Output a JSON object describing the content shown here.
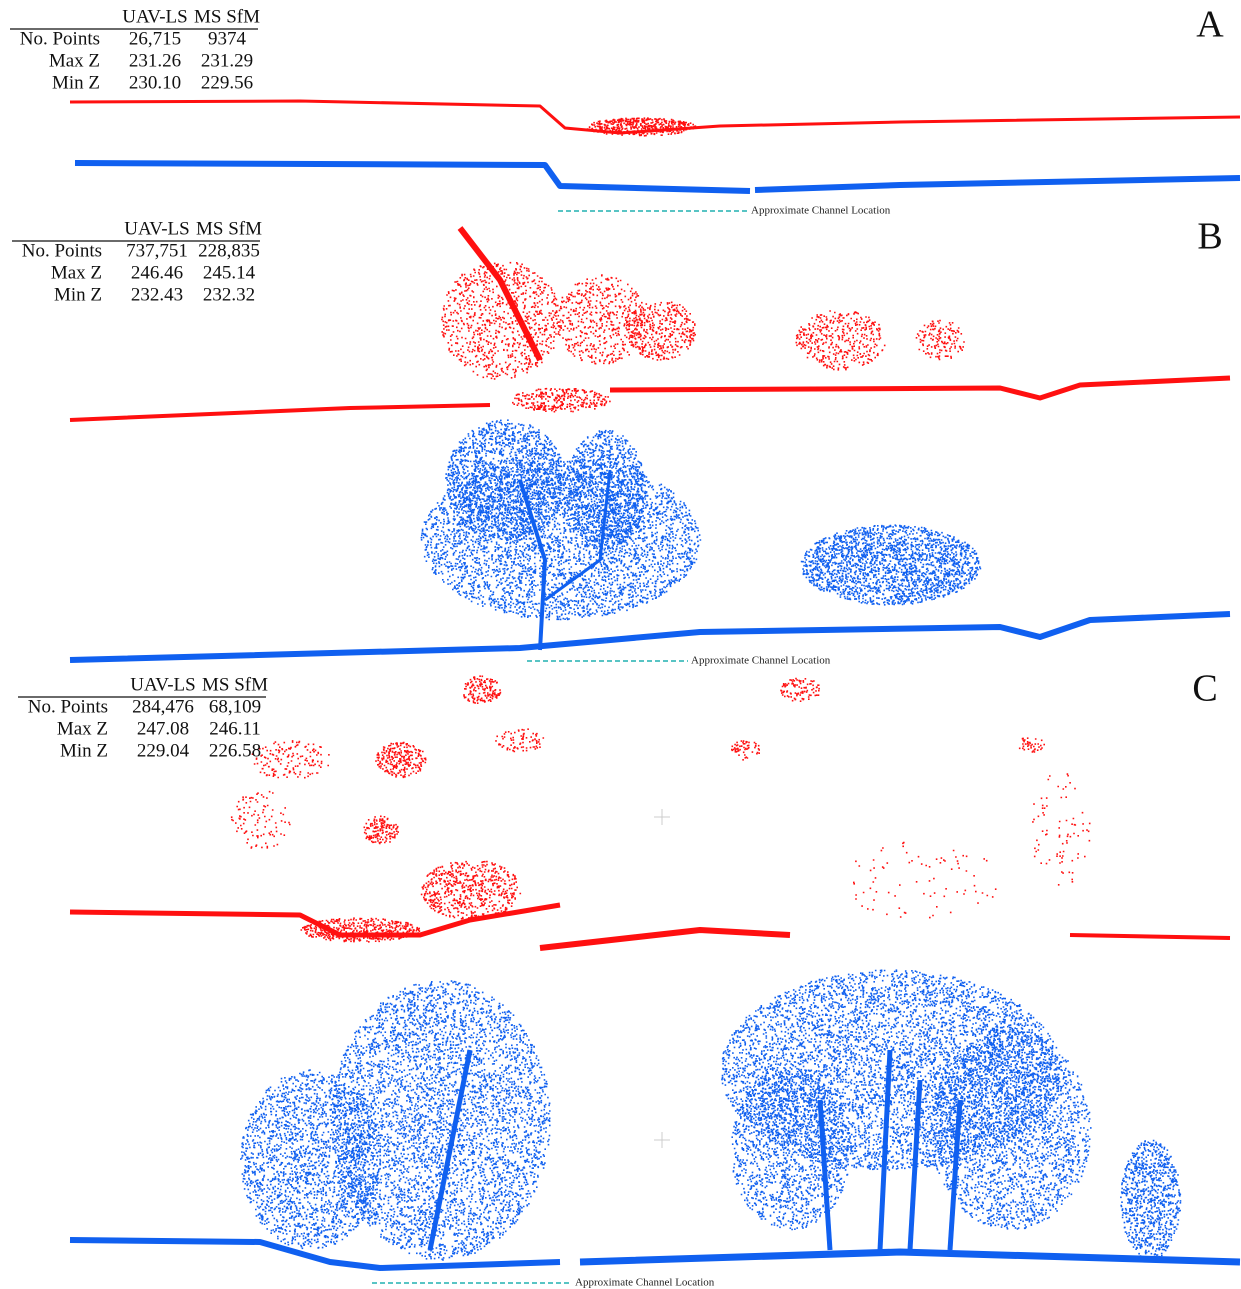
{
  "panels": [
    {
      "label": "A",
      "table": {
        "header": [
          "UAV-LS",
          "MS SfM"
        ],
        "rows": [
          [
            "No. Points",
            "26,715",
            "9374"
          ],
          [
            "Max Z",
            "231.26",
            "231.29"
          ],
          [
            "Min Z",
            "230.10",
            "229.56"
          ]
        ]
      },
      "annotation": "Approximate Channel Location"
    },
    {
      "label": "B",
      "table": {
        "header": [
          "UAV-LS",
          "MS SfM"
        ],
        "rows": [
          [
            "No. Points",
            "737,751",
            "228,835"
          ],
          [
            "Max Z",
            "246.46",
            "245.14"
          ],
          [
            "Min Z",
            "232.43",
            "232.32"
          ]
        ]
      },
      "annotation": "Approximate Channel Location"
    },
    {
      "label": "C",
      "table": {
        "header": [
          "UAV-LS",
          "MS SfM"
        ],
        "rows": [
          [
            "No. Points",
            "284,476",
            "68,109"
          ],
          [
            "Max Z",
            "247.08",
            "246.11"
          ],
          [
            "Min Z",
            "229.04",
            "226.58"
          ]
        ]
      },
      "annotation": "Approximate Channel Location"
    }
  ]
}
